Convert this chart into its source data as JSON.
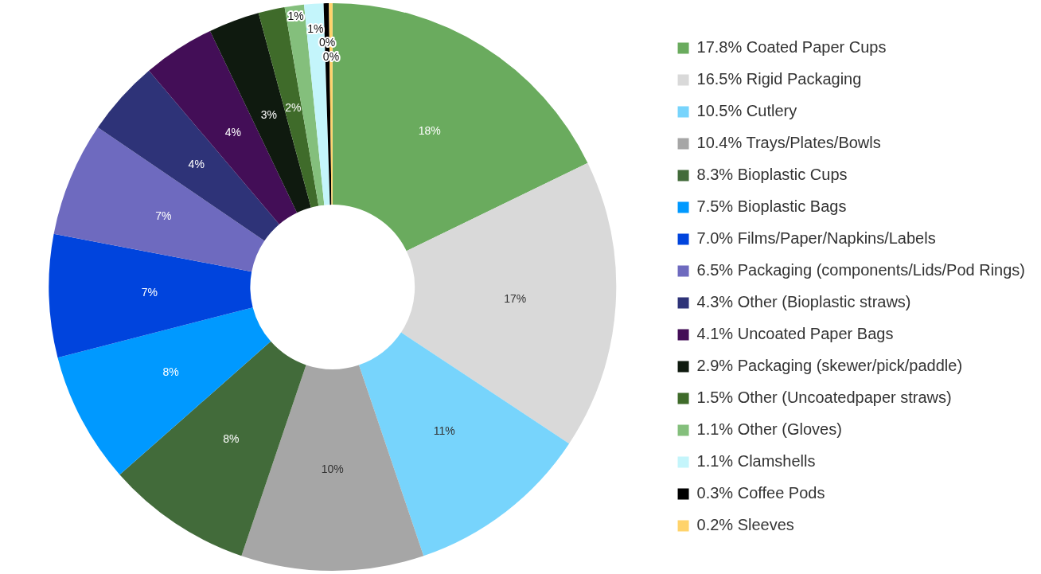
{
  "chart_data": {
    "type": "donut",
    "categories": [
      "17.8% Coated Paper Cups",
      "16.5% Rigid Packaging",
      "10.5% Cutlery",
      "10.4% Trays/Plates/Bowls",
      "8.3% Bioplastic Cups",
      "7.5% Bioplastic Bags",
      "7.0% Films/Paper/Napkins/Labels",
      "6.5% Packaging (components/Lids/Pod Rings)",
      "4.3% Other (Bioplastic straws)",
      "4.1% Uncoated Paper Bags",
      "2.9% Packaging (skewer/pick/paddle)",
      "1.5% Other (Uncoatedpaper straws)",
      "1.1% Other (Gloves)",
      "1.1% Clamshells",
      "0.3% Coffee Pods",
      "0.2% Sleeves"
    ],
    "values": [
      17.8,
      16.5,
      10.5,
      10.4,
      8.3,
      7.5,
      7.0,
      6.5,
      4.3,
      4.1,
      2.9,
      1.5,
      1.1,
      1.1,
      0.3,
      0.2
    ],
    "value_labels": [
      "18%",
      "17%",
      "11%",
      "10%",
      "8%",
      "8%",
      "7%",
      "7%",
      "4%",
      "4%",
      "3%",
      "2%",
      "1%",
      "1%",
      "0%",
      "0%"
    ],
    "colors": [
      "#6aab5e",
      "#d9d9d9",
      "#77d4fc",
      "#a6a6a6",
      "#426b3a",
      "#0099ff",
      "#0044dd",
      "#6e6abf",
      "#2e3378",
      "#430e57",
      "#0f1a0f",
      "#3f6b2a",
      "#84bf7c",
      "#c4f5fb",
      "#000000",
      "#ffd36b"
    ],
    "legend": "right"
  }
}
